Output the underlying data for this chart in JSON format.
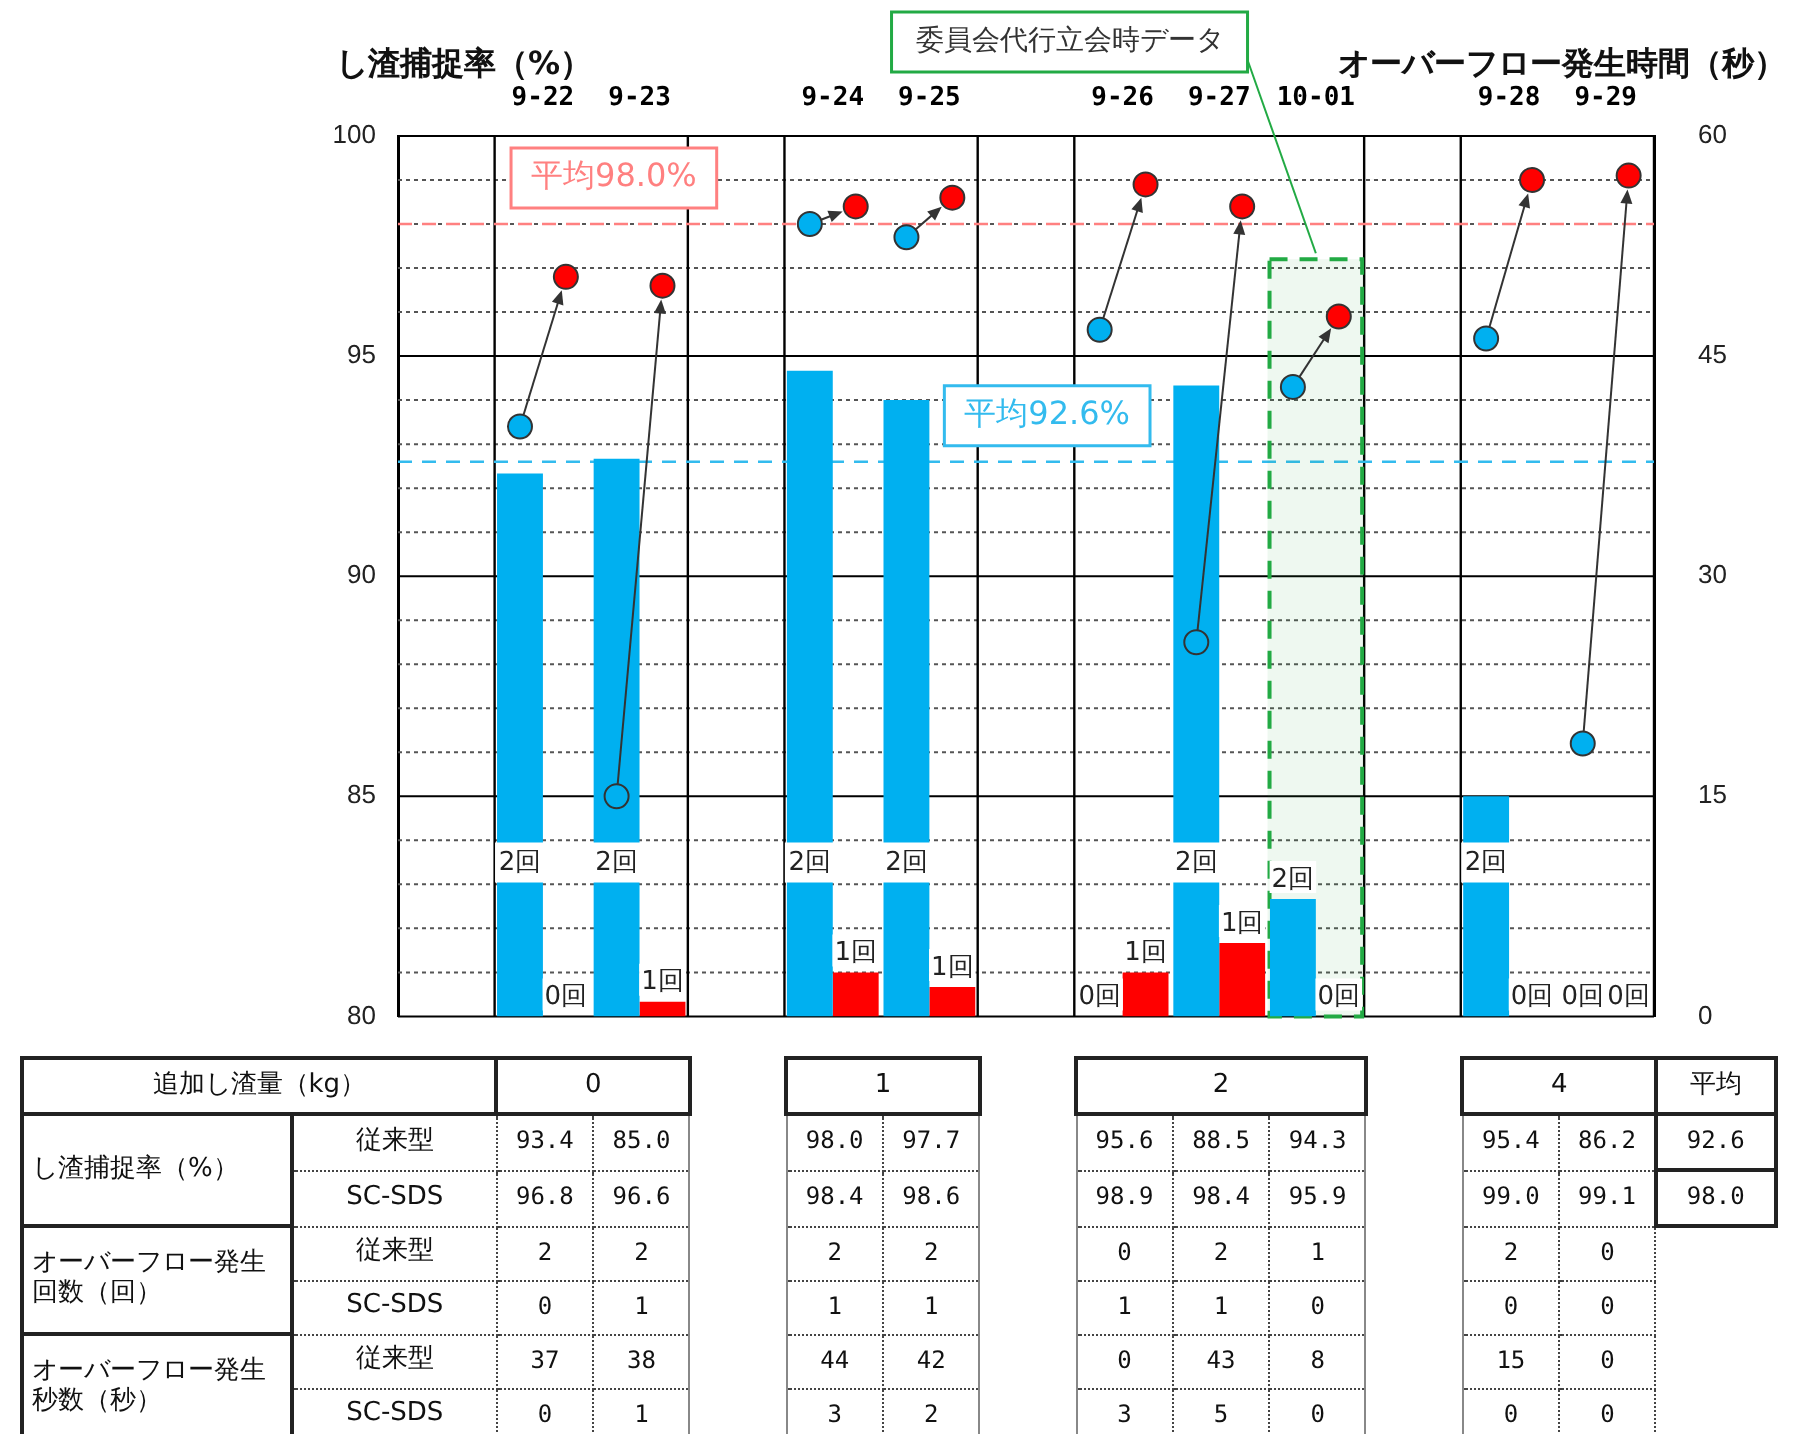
{
  "chart_data": [
    {
      "type": "bar",
      "ylabel": "し渣捕捉率（%）",
      "y2label": "オーバーフロー発生時間（秒）",
      "categories": [
        null,
        "9-22",
        "9-23",
        null,
        "9-24",
        "9-25",
        null,
        "9-26",
        "9-27",
        "10-01",
        null,
        "9-28",
        "9-29"
      ],
      "series": [
        {
          "type": "bar",
          "axis": "y2",
          "color": "#00b0f0",
          "values": [
            null,
            37,
            38,
            null,
            44,
            42,
            null,
            0,
            43,
            8,
            null,
            15,
            0
          ]
        },
        {
          "type": "bar",
          "axis": "y2",
          "color": "#ff0000",
          "values": [
            null,
            0,
            1,
            null,
            3,
            2,
            null,
            3,
            5,
            0,
            null,
            0,
            0
          ]
        },
        {
          "type": "scatter",
          "color": "#00b0f0",
          "values": [
            null,
            93.4,
            85.0,
            null,
            98.0,
            97.7,
            null,
            95.6,
            88.5,
            94.3,
            null,
            95.4,
            86.2
          ]
        },
        {
          "type": "scatter",
          "color": "#ff0000",
          "values": [
            null,
            96.8,
            96.6,
            null,
            98.4,
            98.6,
            null,
            98.9,
            98.4,
            95.9,
            null,
            99.0,
            99.1
          ]
        }
      ],
      "marker": "circle",
      "ylim": [
        80,
        100
      ],
      "yticks": [
        80,
        {
          "value": 81,
          "label": null
        },
        {
          "value": 82,
          "label": null
        },
        {
          "value": 83,
          "label": null
        },
        {
          "value": 84,
          "label": null
        },
        85,
        {
          "value": 86,
          "label": null
        },
        {
          "value": 87,
          "label": null
        },
        {
          "value": 88,
          "label": null
        },
        {
          "value": 89,
          "label": null
        },
        90,
        {
          "value": 91,
          "label": null
        },
        {
          "value": 92,
          "label": null
        },
        {
          "value": 93,
          "label": null
        },
        {
          "value": 94,
          "label": null
        },
        95,
        {
          "value": 96,
          "label": null
        },
        {
          "value": 97,
          "label": null
        },
        {
          "value": 98,
          "label": null
        },
        {
          "value": 99,
          "label": null
        },
        100
      ],
      "y2lim": [
        0,
        60
      ],
      "y2ticks": [
        0,
        15,
        30,
        45,
        60
      ],
      "ref_lines": [
        {
          "axis": "y",
          "value": 92.6,
          "label": "平均92.6%",
          "color": "#33bbee",
          "line_style": "dashed"
        },
        {
          "axis": "y",
          "value": 98.0,
          "label": "平均98.0%",
          "color": "#ff8080",
          "line_style": "dashed"
        }
      ],
      "bands": [
        {
          "axis": "x",
          "from": "10-01",
          "to": "10-01",
          "label": "委員会代行立会時データ",
          "color": "#22aa44"
        }
      ],
      "annotations": [
        "2回",
        "2回",
        "2回",
        "2回",
        "0回",
        "2回",
        "2回",
        "2回",
        "0回",
        "0回",
        "1回",
        "1回",
        "1回",
        "1回",
        "1回",
        "0回",
        "0回",
        "0回"
      ],
      "grid": true,
      "legend": false
    },
    {
      "type": "other",
      "annotations": [
        "追加し渣量（kg）",
        "0",
        "1",
        "2",
        "4",
        "平均",
        "し渣捕捉率（%）",
        "従来型",
        "93.4",
        "85.0",
        "98.0",
        "97.7",
        "95.6",
        "88.5",
        "94.3",
        "95.4",
        "86.2",
        "92.6",
        "SC-SDS",
        "96.8",
        "96.6",
        "98.4",
        "98.6",
        "98.9",
        "98.4",
        "95.9",
        "99.0",
        "99.1",
        "98.0",
        "オーバーフロー発生回数（回）",
        "従来型",
        "2",
        "2",
        "2",
        "2",
        "0",
        "2",
        "1",
        "2",
        "0",
        "SC-SDS",
        "0",
        "1",
        "1",
        "1",
        "1",
        "1",
        "0",
        "0",
        "0",
        "オーバーフロー発生秒数（秒）",
        "従来型",
        "37",
        "38",
        "44",
        "42",
        "0",
        "43",
        "8",
        "15",
        "0",
        "SC-SDS",
        "0",
        "1",
        "3",
        "2",
        "3",
        "5",
        "0",
        "0",
        "0"
      ]
    }
  ]
}
